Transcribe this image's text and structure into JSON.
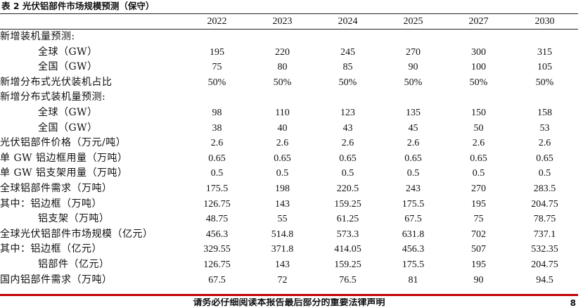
{
  "caption": "表 2 光伏铝部件市场规模预测（保守）",
  "header": {
    "label": "",
    "years": [
      "2022",
      "2023",
      "2024",
      "2025",
      "2027",
      "2030"
    ]
  },
  "rows": [
    {
      "label": "新增装机量预测:",
      "indent": false,
      "values": [
        "",
        "",
        "",
        "",
        "",
        ""
      ]
    },
    {
      "label": "全球（GW）",
      "indent": true,
      "values": [
        "195",
        "220",
        "245",
        "270",
        "300",
        "315"
      ]
    },
    {
      "label": "全国（GW）",
      "indent": true,
      "values": [
        "75",
        "80",
        "85",
        "90",
        "100",
        "105"
      ]
    },
    {
      "label": "新增分布式光伏装机占比",
      "indent": false,
      "values": [
        "50%",
        "50%",
        "50%",
        "50%",
        "50%",
        "50%"
      ]
    },
    {
      "label": "新增分布式装机量预测:",
      "indent": false,
      "values": [
        "",
        "",
        "",
        "",
        "",
        ""
      ]
    },
    {
      "label": "全球（GW）",
      "indent": true,
      "values": [
        "98",
        "110",
        "123",
        "135",
        "150",
        "158"
      ]
    },
    {
      "label": "全国（GW）",
      "indent": true,
      "values": [
        "38",
        "40",
        "43",
        "45",
        "50",
        "53"
      ]
    },
    {
      "label": "光伏铝部件价格（万元/吨）",
      "indent": false,
      "values": [
        "2.6",
        "2.6",
        "2.6",
        "2.6",
        "2.6",
        "2.6"
      ]
    },
    {
      "label": "单 GW 铝边框用量（万吨）",
      "indent": false,
      "values": [
        "0.65",
        "0.65",
        "0.65",
        "0.65",
        "0.65",
        "0.65"
      ]
    },
    {
      "label": "单 GW 铝支架用量（万吨）",
      "indent": false,
      "values": [
        "0.5",
        "0.5",
        "0.5",
        "0.5",
        "0.5",
        "0.5"
      ]
    },
    {
      "label": "全球铝部件需求（万吨）",
      "indent": false,
      "values": [
        "175.5",
        "198",
        "220.5",
        "243",
        "270",
        "283.5"
      ]
    },
    {
      "label": "其中：铝边框（万吨）",
      "indent": false,
      "values": [
        "126.75",
        "143",
        "159.25",
        "175.5",
        "195",
        "204.75"
      ]
    },
    {
      "label": "铝支架（万吨）",
      "indent": true,
      "values": [
        "48.75",
        "55",
        "61.25",
        "67.5",
        "75",
        "78.75"
      ]
    },
    {
      "label": "全球光伏铝部件市场规模（亿元）",
      "indent": false,
      "values": [
        "456.3",
        "514.8",
        "573.3",
        "631.8",
        "702",
        "737.1"
      ]
    },
    {
      "label": "其中：铝边框（亿元）",
      "indent": false,
      "values": [
        "329.55",
        "371.8",
        "414.05",
        "456.3",
        "507",
        "532.35"
      ]
    },
    {
      "label": "铝部件（亿元）",
      "indent": true,
      "values": [
        "126.75",
        "143",
        "159.25",
        "175.5",
        "195",
        "204.75"
      ]
    },
    {
      "label": "国内铝部件需求（万吨）",
      "indent": false,
      "values": [
        "67.5",
        "72",
        "76.5",
        "81",
        "90",
        "94.5"
      ]
    }
  ],
  "footer": "请务必仔细阅读本报告最后部分的重要法律声明",
  "page_number": "8",
  "colors": {
    "accent_rule": "#c00000",
    "text": "#111111"
  }
}
